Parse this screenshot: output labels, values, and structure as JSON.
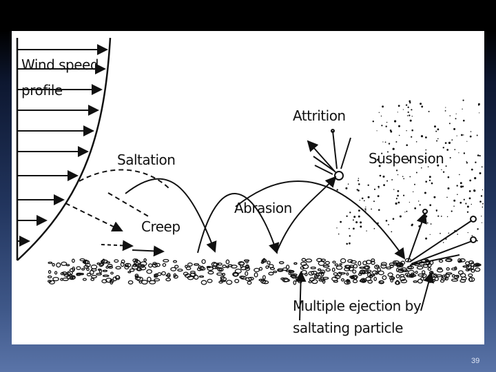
{
  "slide": {
    "page_number": "39"
  },
  "diagram": {
    "labels": {
      "wind_speed": "Wind speed",
      "profile": "profile",
      "attrition": "Attrition",
      "saltation": "Saltation",
      "suspension": "Suspension",
      "abrasion": "Abrasion",
      "creep": "Creep",
      "ejection_line1": "Multiple ejection by",
      "ejection_line2": "saltating particle"
    }
  }
}
